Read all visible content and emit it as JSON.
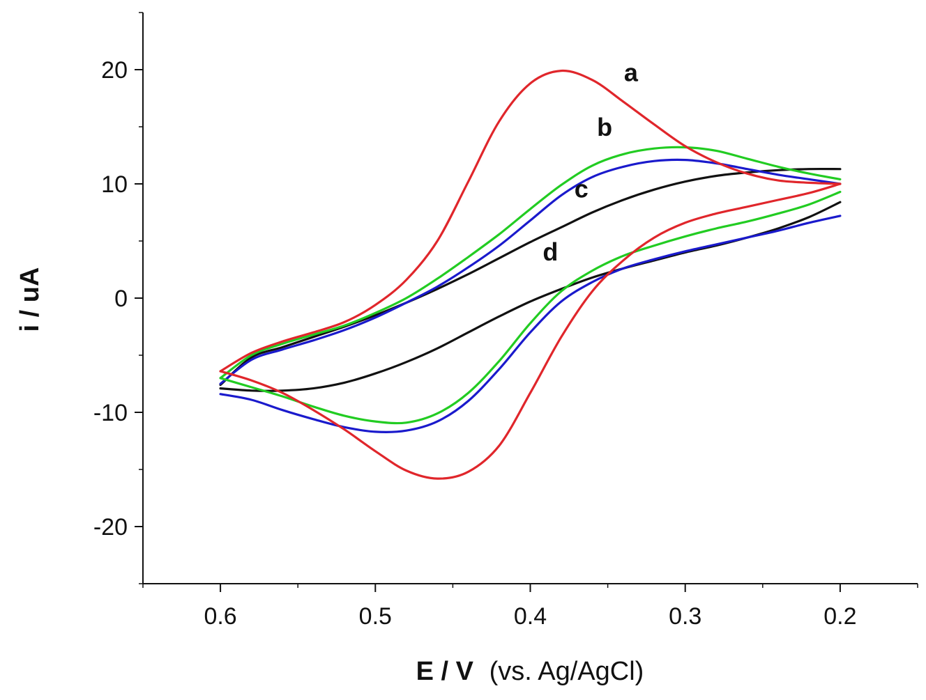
{
  "chart_data": {
    "type": "line",
    "title": "",
    "xlabel": {
      "main": "E / V",
      "suffix": "(vs. Ag/AgCl)"
    },
    "ylabel": "i / uA",
    "xlim": [
      0.65,
      0.15
    ],
    "ylim": [
      -25,
      25
    ],
    "x_ticks": [
      0.6,
      0.5,
      0.4,
      0.3,
      0.2
    ],
    "x_tick_labels": [
      "0.6",
      "0.5",
      "0.4",
      "0.3",
      "0.2"
    ],
    "x_minor_ticks": [
      0.65,
      0.55,
      0.45,
      0.35,
      0.25,
      0.15
    ],
    "y_ticks": [
      20,
      10,
      0,
      -10,
      -20
    ],
    "y_tick_labels": [
      "20",
      "10",
      "0",
      "-10",
      "-20"
    ],
    "y_minor_ticks": [
      25,
      15,
      5,
      -5,
      -15,
      -25
    ],
    "grid": false,
    "series": [
      {
        "name": "a",
        "label": "a",
        "color": "#e0262b",
        "label_at": [
          0.335,
          19.0
        ],
        "anodic": [
          [
            0.6,
            -6.4
          ],
          [
            0.58,
            -4.8
          ],
          [
            0.56,
            -3.8
          ],
          [
            0.54,
            -3.0
          ],
          [
            0.52,
            -2.1
          ],
          [
            0.5,
            -0.6
          ],
          [
            0.48,
            1.6
          ],
          [
            0.46,
            5.0
          ],
          [
            0.44,
            10.2
          ],
          [
            0.42,
            15.5
          ],
          [
            0.4,
            18.8
          ],
          [
            0.38,
            19.9
          ],
          [
            0.36,
            19.1
          ],
          [
            0.34,
            17.2
          ],
          [
            0.32,
            15.2
          ],
          [
            0.3,
            13.3
          ],
          [
            0.28,
            11.9
          ],
          [
            0.26,
            10.9
          ],
          [
            0.24,
            10.3
          ],
          [
            0.22,
            10.1
          ],
          [
            0.2,
            10.0
          ]
        ],
        "cathodic": [
          [
            0.2,
            10.0
          ],
          [
            0.22,
            9.2
          ],
          [
            0.24,
            8.6
          ],
          [
            0.26,
            8.0
          ],
          [
            0.28,
            7.4
          ],
          [
            0.3,
            6.6
          ],
          [
            0.32,
            5.3
          ],
          [
            0.34,
            3.3
          ],
          [
            0.36,
            0.6
          ],
          [
            0.38,
            -3.4
          ],
          [
            0.4,
            -8.3
          ],
          [
            0.42,
            -12.9
          ],
          [
            0.44,
            -15.2
          ],
          [
            0.46,
            -15.8
          ],
          [
            0.48,
            -15.1
          ],
          [
            0.5,
            -13.4
          ],
          [
            0.52,
            -11.5
          ],
          [
            0.54,
            -9.8
          ],
          [
            0.56,
            -8.3
          ],
          [
            0.58,
            -7.2
          ],
          [
            0.6,
            -6.4
          ]
        ]
      },
      {
        "name": "b",
        "label": "b",
        "color": "#22cc22",
        "label_at": [
          0.352,
          14.2
        ],
        "anodic": [
          [
            0.6,
            -7.0
          ],
          [
            0.58,
            -5.0
          ],
          [
            0.56,
            -4.0
          ],
          [
            0.54,
            -3.2
          ],
          [
            0.52,
            -2.4
          ],
          [
            0.5,
            -1.3
          ],
          [
            0.48,
            0.0
          ],
          [
            0.46,
            1.7
          ],
          [
            0.44,
            3.6
          ],
          [
            0.42,
            5.6
          ],
          [
            0.4,
            7.8
          ],
          [
            0.38,
            9.9
          ],
          [
            0.36,
            11.6
          ],
          [
            0.34,
            12.6
          ],
          [
            0.32,
            13.1
          ],
          [
            0.3,
            13.2
          ],
          [
            0.28,
            12.9
          ],
          [
            0.26,
            12.2
          ],
          [
            0.24,
            11.5
          ],
          [
            0.22,
            10.9
          ],
          [
            0.2,
            10.4
          ]
        ],
        "cathodic": [
          [
            0.2,
            9.3
          ],
          [
            0.22,
            8.2
          ],
          [
            0.24,
            7.4
          ],
          [
            0.26,
            6.7
          ],
          [
            0.28,
            6.1
          ],
          [
            0.3,
            5.4
          ],
          [
            0.32,
            4.6
          ],
          [
            0.34,
            3.7
          ],
          [
            0.36,
            2.4
          ],
          [
            0.38,
            0.6
          ],
          [
            0.4,
            -2.2
          ],
          [
            0.42,
            -5.5
          ],
          [
            0.44,
            -8.3
          ],
          [
            0.46,
            -10.1
          ],
          [
            0.48,
            -10.9
          ],
          [
            0.5,
            -10.8
          ],
          [
            0.52,
            -10.3
          ],
          [
            0.54,
            -9.5
          ],
          [
            0.56,
            -8.6
          ],
          [
            0.58,
            -7.8
          ],
          [
            0.6,
            -7.0
          ]
        ]
      },
      {
        "name": "c",
        "label": "c",
        "color": "#1a1acc",
        "label_at": [
          0.367,
          8.8
        ],
        "anodic": [
          [
            0.6,
            -7.5
          ],
          [
            0.58,
            -5.4
          ],
          [
            0.56,
            -4.5
          ],
          [
            0.54,
            -3.7
          ],
          [
            0.52,
            -2.8
          ],
          [
            0.5,
            -1.7
          ],
          [
            0.48,
            -0.4
          ],
          [
            0.46,
            1.0
          ],
          [
            0.44,
            2.7
          ],
          [
            0.42,
            4.6
          ],
          [
            0.4,
            6.8
          ],
          [
            0.38,
            9.0
          ],
          [
            0.36,
            10.6
          ],
          [
            0.34,
            11.5
          ],
          [
            0.32,
            12.0
          ],
          [
            0.3,
            12.1
          ],
          [
            0.28,
            11.8
          ],
          [
            0.26,
            11.3
          ],
          [
            0.24,
            10.8
          ],
          [
            0.22,
            10.4
          ],
          [
            0.2,
            10.0
          ]
        ],
        "cathodic": [
          [
            0.2,
            7.2
          ],
          [
            0.22,
            6.6
          ],
          [
            0.24,
            5.9
          ],
          [
            0.26,
            5.3
          ],
          [
            0.28,
            4.7
          ],
          [
            0.3,
            4.1
          ],
          [
            0.32,
            3.4
          ],
          [
            0.34,
            2.6
          ],
          [
            0.36,
            1.4
          ],
          [
            0.38,
            -0.3
          ],
          [
            0.4,
            -3.0
          ],
          [
            0.42,
            -6.2
          ],
          [
            0.44,
            -9.0
          ],
          [
            0.46,
            -10.8
          ],
          [
            0.48,
            -11.6
          ],
          [
            0.5,
            -11.7
          ],
          [
            0.52,
            -11.3
          ],
          [
            0.54,
            -10.6
          ],
          [
            0.56,
            -9.8
          ],
          [
            0.58,
            -8.9
          ],
          [
            0.6,
            -8.4
          ]
        ]
      },
      {
        "name": "d",
        "label": "d",
        "color": "#111111",
        "label_at": [
          0.387,
          3.3
        ],
        "anodic": [
          [
            0.6,
            -7.6
          ],
          [
            0.58,
            -5.2
          ],
          [
            0.56,
            -4.3
          ],
          [
            0.54,
            -3.4
          ],
          [
            0.52,
            -2.5
          ],
          [
            0.5,
            -1.5
          ],
          [
            0.48,
            -0.4
          ],
          [
            0.46,
            0.8
          ],
          [
            0.44,
            2.1
          ],
          [
            0.42,
            3.5
          ],
          [
            0.4,
            4.9
          ],
          [
            0.38,
            6.2
          ],
          [
            0.36,
            7.5
          ],
          [
            0.34,
            8.6
          ],
          [
            0.32,
            9.5
          ],
          [
            0.3,
            10.2
          ],
          [
            0.28,
            10.7
          ],
          [
            0.26,
            11.0
          ],
          [
            0.24,
            11.2
          ],
          [
            0.22,
            11.3
          ],
          [
            0.2,
            11.3
          ]
        ],
        "cathodic": [
          [
            0.2,
            8.4
          ],
          [
            0.22,
            7.1
          ],
          [
            0.24,
            6.1
          ],
          [
            0.26,
            5.3
          ],
          [
            0.28,
            4.6
          ],
          [
            0.3,
            4.0
          ],
          [
            0.32,
            3.3
          ],
          [
            0.34,
            2.6
          ],
          [
            0.36,
            1.8
          ],
          [
            0.38,
            0.8
          ],
          [
            0.4,
            -0.3
          ],
          [
            0.42,
            -1.6
          ],
          [
            0.44,
            -3.0
          ],
          [
            0.46,
            -4.4
          ],
          [
            0.48,
            -5.6
          ],
          [
            0.5,
            -6.6
          ],
          [
            0.52,
            -7.4
          ],
          [
            0.54,
            -7.9
          ],
          [
            0.56,
            -8.1
          ],
          [
            0.58,
            -8.1
          ],
          [
            0.6,
            -7.9
          ]
        ]
      }
    ]
  }
}
